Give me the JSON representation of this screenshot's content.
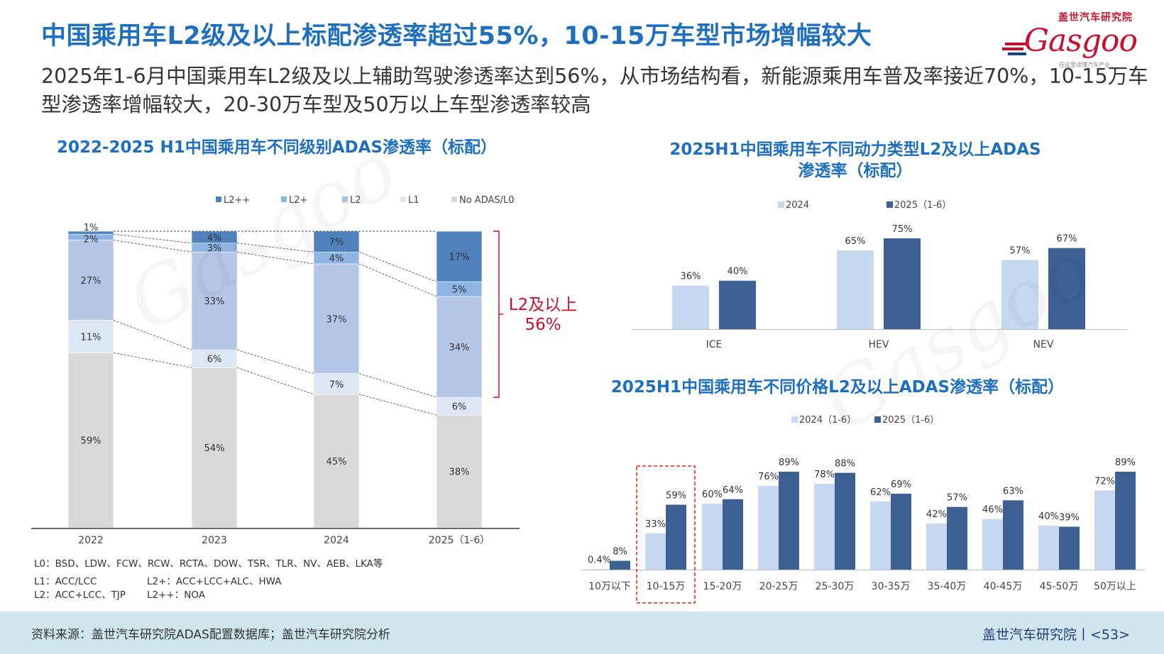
{
  "page": {
    "title": "中国乘用车L2级及以上标配渗透率超过55%，10-15万车型市场增幅较大",
    "subtitle": "2025年1-6月中国乘用车L2级及以上辅助驾驶渗透率达到56%，从市场结构看，新能源乘用车普及率接近70%，10-15万车型渗透率增幅较大，20-30万车型及50万以上车型渗透率较高",
    "logo_cn": "盖世汽车研究院",
    "logo_en": "Gasgoo",
    "logo_tag": "在这里读懂汽车产业",
    "annotation": "L2及以上\n56%",
    "annotation_line1": "L2及以上",
    "annotation_line2": "56%",
    "notes": {
      "l0": "L0：BSD、LDW、FCW、RCW、RCTA、DOW、TSR、TLR、NV、AEB、LKA等",
      "l1": "L1：ACC/LCC",
      "l2": "L2：ACC+LCC、TJP",
      "l2plus": "L2+：ACC+LCC+ALC、HWA",
      "l2plusplus": "L2++：NOA"
    },
    "footer_source": "资料来源：盖世汽车研究院ADAS配置数据库；盖世汽车研究院分析",
    "footer_brand": "盖世汽车研究院丨<53>",
    "colors": {
      "title_blue": "#1f6fbf",
      "red": "#c8102e",
      "dark_series": "#3d6195",
      "light_series": "#c6d9f1"
    }
  },
  "chart_data": [
    {
      "type": "bar",
      "stacked": true,
      "title": "2022-2025 H1中国乘用车不同级别ADAS渗透率（标配）",
      "categories": [
        "2022",
        "2023",
        "2024",
        "2025（1-6）"
      ],
      "series": [
        {
          "name": "No ADAS/L0",
          "color": "#d9d9d9",
          "values": [
            59,
            54,
            45,
            38
          ]
        },
        {
          "name": "L1",
          "color": "#dde6f3",
          "values": [
            11,
            6,
            7,
            6
          ]
        },
        {
          "name": "L2",
          "color": "#b4c7e7",
          "values": [
            27,
            33,
            37,
            34
          ]
        },
        {
          "name": "L2+",
          "color": "#8eb4e3",
          "values": [
            2,
            3,
            4,
            5
          ]
        },
        {
          "name": "L2++",
          "color": "#4f81bd",
          "values": [
            1,
            4,
            7,
            17
          ]
        }
      ],
      "legend_order": [
        "L2++",
        "L2+",
        "L2",
        "L1",
        "No ADAS/L0"
      ],
      "legend": "top",
      "ylim": [
        0,
        100
      ]
    },
    {
      "type": "bar",
      "title": "2025H1中国乘用车不同动力类型L2及以上ADAS渗透率（标配）",
      "title_line1": "2025H1中国乘用车不同动力类型L2及以上ADAS",
      "title_line2": "渗透率（标配）",
      "categories": [
        "ICE",
        "HEV",
        "NEV"
      ],
      "series": [
        {
          "name": "2024",
          "color": "#c6d9f1",
          "values": [
            36,
            65,
            57
          ]
        },
        {
          "name": "2025（1-6）",
          "color": "#3d6195",
          "values": [
            40,
            75,
            67
          ]
        }
      ],
      "legend": "top",
      "unit": "%"
    },
    {
      "type": "bar",
      "title": "2025H1中国乘用车不同价格L2及以上ADAS渗透率（标配）",
      "categories": [
        "10万以下",
        "10-15万",
        "15-20万",
        "20-25万",
        "25-30万",
        "30-35万",
        "35-40万",
        "40-45万",
        "45-50万",
        "50万以上"
      ],
      "series": [
        {
          "name": "2024（1-6）",
          "color": "#c6d9f1",
          "values": [
            0.4,
            33,
            60,
            76,
            78,
            62,
            42,
            46,
            40,
            72
          ]
        },
        {
          "name": "2025（1-6）",
          "color": "#3d6195",
          "values": [
            8,
            59,
            64,
            89,
            88,
            69,
            57,
            63,
            39,
            89
          ]
        }
      ],
      "highlight_category": "10-15万",
      "legend": "top",
      "unit": "%"
    }
  ]
}
